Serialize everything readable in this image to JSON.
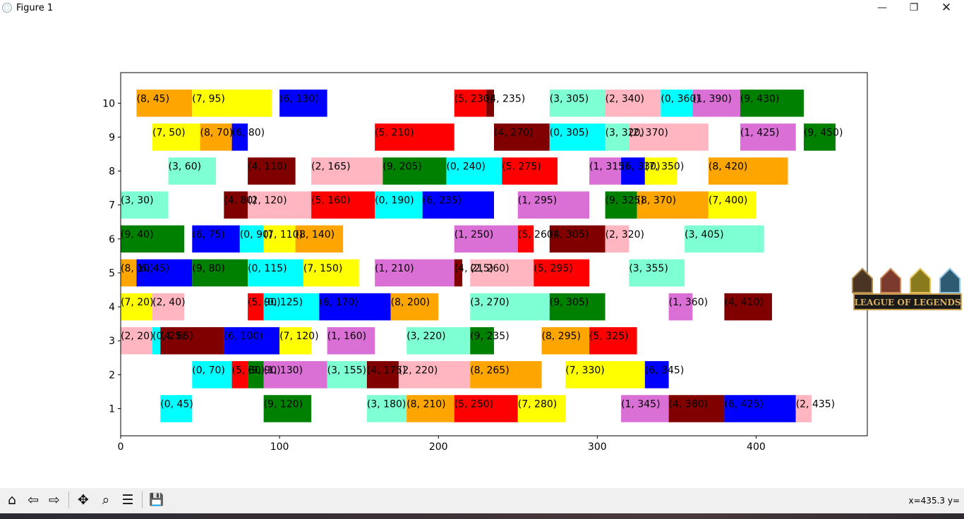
{
  "window": {
    "title": "Figure 1",
    "minimize_glyph": "—",
    "maximize_glyph": "❐",
    "close_glyph": "✕"
  },
  "toolbar": {
    "buttons": [
      {
        "name": "home-icon",
        "glyph": "⌂"
      },
      {
        "name": "back-icon",
        "glyph": "⇦"
      },
      {
        "name": "forward-icon",
        "glyph": "⇨"
      },
      {
        "name": "pan-icon",
        "glyph": "✥"
      },
      {
        "name": "zoom-icon",
        "glyph": "⌕"
      },
      {
        "name": "configure-subplots-icon",
        "glyph": "☰"
      },
      {
        "name": "save-icon",
        "glyph": "💾"
      }
    ],
    "coord_readout": "x=435.3 y="
  },
  "overlay": {
    "logo_text": "LEAGUE OF LEGENDS"
  },
  "colors": {
    "0": "#00ffff",
    "1": "#da70d6",
    "2": "#ffb6c1",
    "3": "#7fffd4",
    "4": "#800000",
    "5": "#ff0000",
    "6": "#0000ff",
    "7": "#ffff00",
    "8": "#ffa500",
    "9": "#008000"
  },
  "chart_data": {
    "type": "bar",
    "orientation": "horizontal",
    "xlim": [
      0,
      470
    ],
    "ylim": [
      0.2,
      10.9
    ],
    "xticks": [
      0,
      100,
      200,
      300,
      400
    ],
    "yticks": [
      1,
      2,
      3,
      4,
      5,
      6,
      7,
      8,
      9,
      10
    ],
    "bar_height": 0.8,
    "grid": false,
    "rows": [
      {
        "y": 1,
        "bars": [
          {
            "job": 0,
            "start": 25,
            "end": 45,
            "label": "(0, 45)"
          },
          {
            "job": 9,
            "start": 90,
            "end": 120,
            "label": "(9, 120)"
          },
          {
            "job": 3,
            "start": 155,
            "end": 180,
            "label": "(3, 180)"
          },
          {
            "job": 8,
            "start": 180,
            "end": 210,
            "label": "(8, 210)"
          },
          {
            "job": 5,
            "start": 210,
            "end": 250,
            "label": "(5, 250)"
          },
          {
            "job": 7,
            "start": 250,
            "end": 280,
            "label": "(7, 280)"
          },
          {
            "job": 1,
            "start": 315,
            "end": 345,
            "label": "(1, 345)"
          },
          {
            "job": 4,
            "start": 345,
            "end": 380,
            "label": "(4, 380)"
          },
          {
            "job": 6,
            "start": 380,
            "end": 425,
            "label": "(6, 425)"
          },
          {
            "job": 2,
            "start": 425,
            "end": 435,
            "label": "(2, 435)"
          }
        ]
      },
      {
        "y": 2,
        "bars": [
          {
            "job": 0,
            "start": 45,
            "end": 70,
            "label": "(0, 70)"
          },
          {
            "job": 5,
            "start": 70,
            "end": 80,
            "label": "(5, 80)"
          },
          {
            "job": 9,
            "start": 80,
            "end": 90,
            "label": "(9, 90)"
          },
          {
            "job": 1,
            "start": 90,
            "end": 130,
            "label": "(1, 130)"
          },
          {
            "job": 3,
            "start": 130,
            "end": 155,
            "label": "(3, 155)"
          },
          {
            "job": 4,
            "start": 155,
            "end": 175,
            "label": "(4, 175)"
          },
          {
            "job": 2,
            "start": 175,
            "end": 220,
            "label": "(2, 220)"
          },
          {
            "job": 8,
            "start": 220,
            "end": 265,
            "label": "(8, 265)"
          },
          {
            "job": 7,
            "start": 280,
            "end": 330,
            "label": "(7, 330)"
          },
          {
            "job": 6,
            "start": 330,
            "end": 345,
            "label": "(6, 345)"
          }
        ]
      },
      {
        "y": 3,
        "bars": [
          {
            "job": 2,
            "start": 0,
            "end": 20,
            "label": "(2, 20)"
          },
          {
            "job": 0,
            "start": 20,
            "end": 25,
            "label": "(0, 25)"
          },
          {
            "job": 4,
            "start": 25,
            "end": 65,
            "label": "(4, 65)"
          },
          {
            "job": 6,
            "start": 65,
            "end": 100,
            "label": "(6, 100)"
          },
          {
            "job": 7,
            "start": 100,
            "end": 120,
            "label": "(7, 120)"
          },
          {
            "job": 1,
            "start": 130,
            "end": 160,
            "label": "(1, 160)"
          },
          {
            "job": 3,
            "start": 180,
            "end": 220,
            "label": "(3, 220)"
          },
          {
            "job": 9,
            "start": 220,
            "end": 235,
            "label": "(9, 235)"
          },
          {
            "job": 8,
            "start": 265,
            "end": 295,
            "label": "(8, 295)"
          },
          {
            "job": 5,
            "start": 295,
            "end": 325,
            "label": "(5, 325)"
          }
        ]
      },
      {
        "y": 4,
        "bars": [
          {
            "job": 7,
            "start": 0,
            "end": 20,
            "label": "(7, 20)"
          },
          {
            "job": 2,
            "start": 20,
            "end": 40,
            "label": "(2, 40)"
          },
          {
            "job": 5,
            "start": 80,
            "end": 90,
            "label": "(5, 90)"
          },
          {
            "job": 0,
            "start": 90,
            "end": 125,
            "label": "(0, 125)"
          },
          {
            "job": 6,
            "start": 125,
            "end": 170,
            "label": "(6, 170)"
          },
          {
            "job": 8,
            "start": 170,
            "end": 200,
            "label": "(8, 200)"
          },
          {
            "job": 3,
            "start": 220,
            "end": 270,
            "label": "(3, 270)"
          },
          {
            "job": 9,
            "start": 270,
            "end": 305,
            "label": "(9, 305)"
          },
          {
            "job": 1,
            "start": 345,
            "end": 360,
            "label": "(1, 360)"
          },
          {
            "job": 4,
            "start": 380,
            "end": 410,
            "label": "(4, 410)"
          }
        ]
      },
      {
        "y": 5,
        "bars": [
          {
            "job": 8,
            "start": 0,
            "end": 10,
            "label": "(8, 10)"
          },
          {
            "job": 6,
            "start": 10,
            "end": 45,
            "label": "(6, 45)"
          },
          {
            "job": 9,
            "start": 45,
            "end": 80,
            "label": "(9, 80)"
          },
          {
            "job": 0,
            "start": 80,
            "end": 115,
            "label": "(0, 115)"
          },
          {
            "job": 7,
            "start": 115,
            "end": 150,
            "label": "(7, 150)"
          },
          {
            "job": 1,
            "start": 160,
            "end": 210,
            "label": "(1, 210)"
          },
          {
            "job": 4,
            "start": 210,
            "end": 215,
            "label": "(4, 215)"
          },
          {
            "job": 2,
            "start": 220,
            "end": 260,
            "label": "(2, 260)"
          },
          {
            "job": 5,
            "start": 260,
            "end": 295,
            "label": "(5, 295)"
          },
          {
            "job": 3,
            "start": 320,
            "end": 355,
            "label": "(3, 355)"
          }
        ]
      },
      {
        "y": 6,
        "bars": [
          {
            "job": 9,
            "start": 0,
            "end": 40,
            "label": "(9, 40)"
          },
          {
            "job": 6,
            "start": 45,
            "end": 75,
            "label": "(6, 75)"
          },
          {
            "job": 0,
            "start": 75,
            "end": 90,
            "label": "(0, 90)"
          },
          {
            "job": 7,
            "start": 90,
            "end": 110,
            "label": "(7, 110)"
          },
          {
            "job": 8,
            "start": 110,
            "end": 140,
            "label": "(8, 140)"
          },
          {
            "job": 1,
            "start": 210,
            "end": 250,
            "label": "(1, 250)"
          },
          {
            "job": 5,
            "start": 250,
            "end": 260,
            "label": "(5, 260)"
          },
          {
            "job": 4,
            "start": 270,
            "end": 305,
            "label": "(4, 305)"
          },
          {
            "job": 2,
            "start": 305,
            "end": 320,
            "label": "(2, 320)"
          },
          {
            "job": 3,
            "start": 355,
            "end": 405,
            "label": "(3, 405)"
          }
        ]
      },
      {
        "y": 7,
        "bars": [
          {
            "job": 3,
            "start": 0,
            "end": 30,
            "label": "(3, 30)"
          },
          {
            "job": 4,
            "start": 65,
            "end": 80,
            "label": "(4, 80)"
          },
          {
            "job": 2,
            "start": 80,
            "end": 120,
            "label": "(2, 120)"
          },
          {
            "job": 5,
            "start": 120,
            "end": 160,
            "label": "(5, 160)"
          },
          {
            "job": 0,
            "start": 160,
            "end": 190,
            "label": "(0, 190)"
          },
          {
            "job": 6,
            "start": 190,
            "end": 235,
            "label": "(6, 235)"
          },
          {
            "job": 1,
            "start": 250,
            "end": 295,
            "label": "(1, 295)"
          },
          {
            "job": 9,
            "start": 305,
            "end": 325,
            "label": "(9, 325)"
          },
          {
            "job": 8,
            "start": 325,
            "end": 370,
            "label": "(8, 370)"
          },
          {
            "job": 7,
            "start": 370,
            "end": 400,
            "label": "(7, 400)"
          }
        ]
      },
      {
        "y": 8,
        "bars": [
          {
            "job": 3,
            "start": 30,
            "end": 60,
            "label": "(3, 60)"
          },
          {
            "job": 4,
            "start": 80,
            "end": 110,
            "label": "(4, 110)"
          },
          {
            "job": 2,
            "start": 120,
            "end": 165,
            "label": "(2, 165)"
          },
          {
            "job": 9,
            "start": 165,
            "end": 205,
            "label": "(9, 205)"
          },
          {
            "job": 0,
            "start": 205,
            "end": 240,
            "label": "(0, 240)"
          },
          {
            "job": 5,
            "start": 240,
            "end": 275,
            "label": "(5, 275)"
          },
          {
            "job": 1,
            "start": 295,
            "end": 315,
            "label": "(1, 315)"
          },
          {
            "job": 6,
            "start": 315,
            "end": 330,
            "label": "(6, 330)"
          },
          {
            "job": 7,
            "start": 330,
            "end": 350,
            "label": "(7, 350)"
          },
          {
            "job": 8,
            "start": 370,
            "end": 420,
            "label": "(8, 420)"
          }
        ]
      },
      {
        "y": 9,
        "bars": [
          {
            "job": 7,
            "start": 20,
            "end": 50,
            "label": "(7, 50)"
          },
          {
            "job": 8,
            "start": 50,
            "end": 70,
            "label": "(8, 70)"
          },
          {
            "job": 6,
            "start": 70,
            "end": 80,
            "label": "(6, 80)"
          },
          {
            "job": 5,
            "start": 160,
            "end": 210,
            "label": "(5, 210)"
          },
          {
            "job": 4,
            "start": 235,
            "end": 270,
            "label": "(4, 270)"
          },
          {
            "job": 0,
            "start": 270,
            "end": 305,
            "label": "(0, 305)"
          },
          {
            "job": 3,
            "start": 305,
            "end": 320,
            "label": "(3, 320)"
          },
          {
            "job": 2,
            "start": 320,
            "end": 370,
            "label": "(2, 370)"
          },
          {
            "job": 1,
            "start": 390,
            "end": 425,
            "label": "(1, 425)"
          },
          {
            "job": 9,
            "start": 430,
            "end": 450,
            "label": "(9, 450)"
          }
        ]
      },
      {
        "y": 10,
        "bars": [
          {
            "job": 8,
            "start": 10,
            "end": 45,
            "label": "(8, 45)"
          },
          {
            "job": 7,
            "start": 45,
            "end": 95,
            "label": "(7, 95)"
          },
          {
            "job": 6,
            "start": 100,
            "end": 130,
            "label": "(6, 130)"
          },
          {
            "job": 5,
            "start": 210,
            "end": 230,
            "label": "(5, 230)"
          },
          {
            "job": 4,
            "start": 230,
            "end": 235,
            "label": "(4, 235)"
          },
          {
            "job": 3,
            "start": 270,
            "end": 305,
            "label": "(3, 305)"
          },
          {
            "job": 2,
            "start": 305,
            "end": 340,
            "label": "(2, 340)"
          },
          {
            "job": 0,
            "start": 340,
            "end": 360,
            "label": "(0, 360)"
          },
          {
            "job": 1,
            "start": 360,
            "end": 390,
            "label": "(1, 390)"
          },
          {
            "job": 9,
            "start": 390,
            "end": 430,
            "label": "(9, 430)"
          }
        ]
      }
    ]
  }
}
